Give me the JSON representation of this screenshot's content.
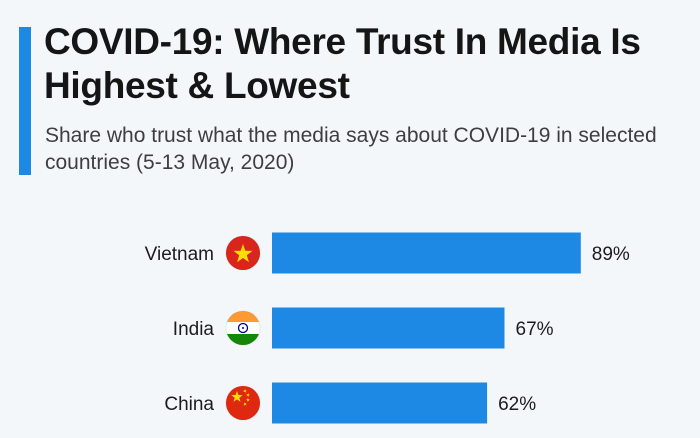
{
  "header": {
    "title": "COVID-19: Where Trust In Media Is Highest & Lowest",
    "subtitle": "Share who trust what the media says about COVID-19 in selected countries (5-13 May, 2020)"
  },
  "colors": {
    "bar": "#1e88e5",
    "accent": "#1e88e5",
    "background": "#f3f7fa"
  },
  "chart_data": {
    "type": "bar",
    "orientation": "horizontal",
    "title": "COVID-19: Where Trust In Media Is Highest & Lowest",
    "subtitle": "Share who trust what the media says about COVID-19 in selected countries (5-13 May, 2020)",
    "categories": [
      "Vietnam",
      "India",
      "China"
    ],
    "values": [
      89,
      67,
      62
    ],
    "value_labels": [
      "89%",
      "67%",
      "62%"
    ],
    "flags": [
      "vietnam-flag-icon",
      "india-flag-icon",
      "china-flag-icon"
    ],
    "unit": "%",
    "xlim": [
      0,
      100
    ],
    "grid": false
  }
}
